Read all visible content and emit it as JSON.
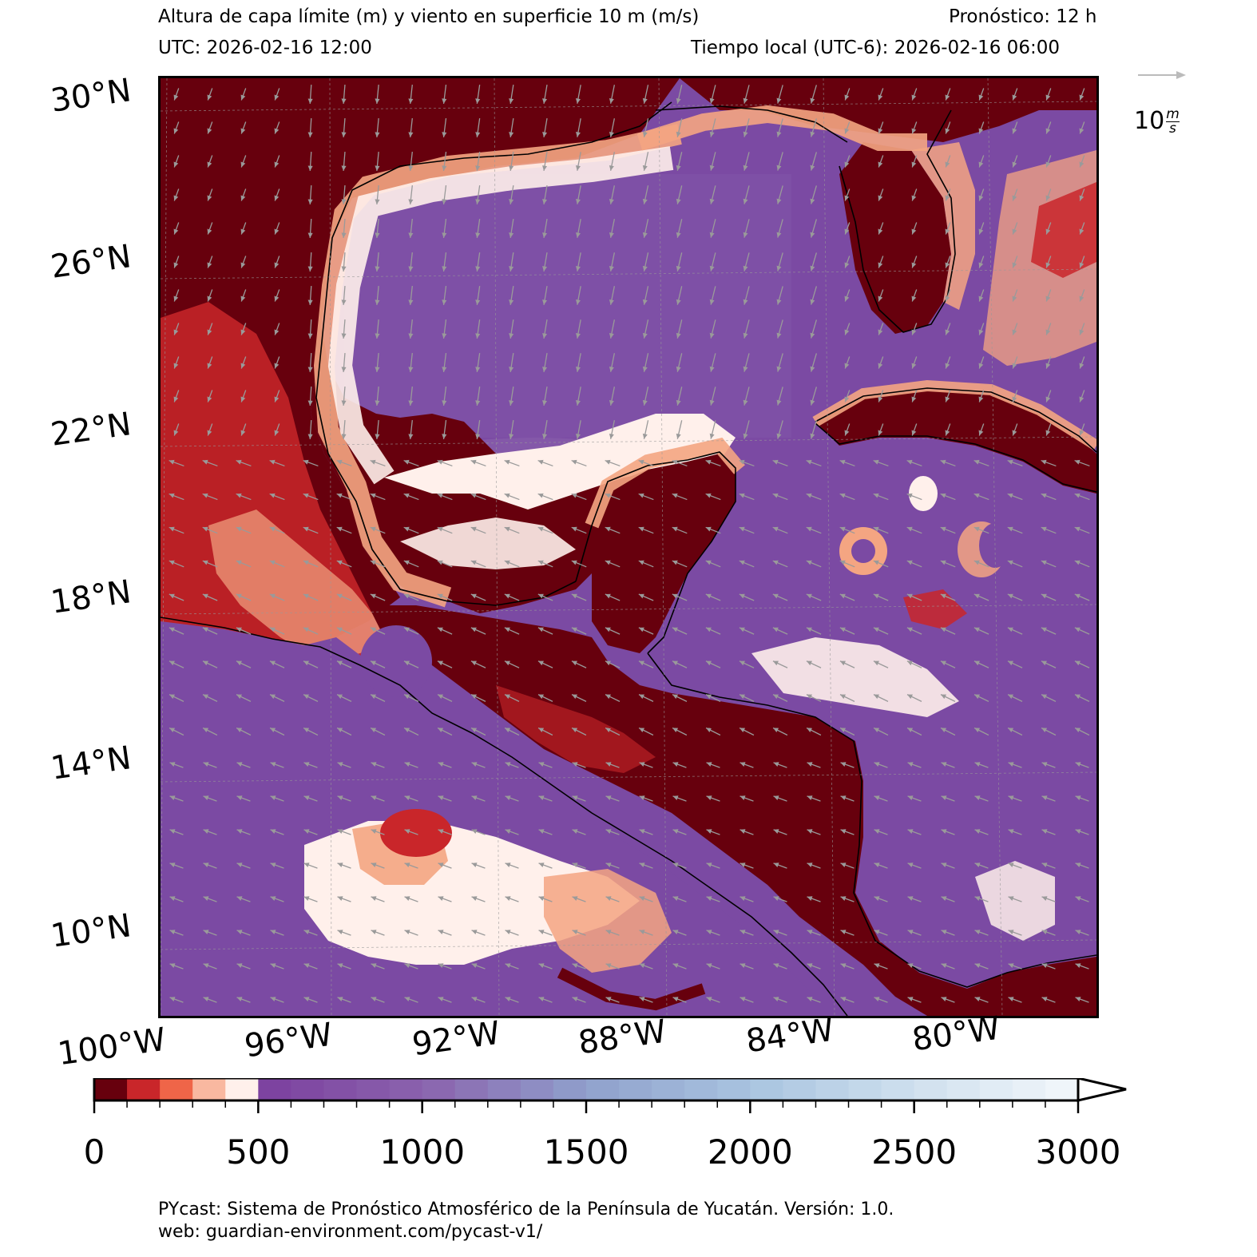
{
  "header": {
    "title": "Altura de capa límite (m) y viento en superficie 10 m (m/s)",
    "forecast": "Pronóstico: 12 h",
    "utc": "UTC:  2026-02-16 12:00",
    "local_time": "Tiempo local (UTC-6): 2026-02-16 06:00"
  },
  "map": {
    "lon_range": [
      -100,
      -77
    ],
    "lat_range": [
      7.8,
      30.2
    ],
    "lat_labels": [
      "30°N",
      "26°N",
      "22°N",
      "18°N",
      "14°N",
      "10°N"
    ],
    "lon_labels": [
      "100°W",
      "96°W",
      "92°W",
      "88°W",
      "84°W",
      "80°W"
    ],
    "colors": {
      "ocean": "#7b4aa3",
      "land_low": "#67000d",
      "land_mid": "#c9262a",
      "coast_band": "#f4a582",
      "pale": "#fff0eb"
    }
  },
  "wind_reference": {
    "value_prefix": "10",
    "unit_num": "m",
    "unit_den": "s"
  },
  "colorbar": {
    "min": 0,
    "max": 3000,
    "step": 100,
    "tick_labels": [
      "0",
      "500",
      "1000",
      "1500",
      "2000",
      "2500",
      "3000"
    ],
    "tick_values": [
      0,
      500,
      1000,
      1500,
      2000,
      2500,
      3000
    ]
  },
  "footer": {
    "line1": "PYcast: Sistema de Pronóstico Atmosférico de la Península de Yucatán. Versión: 1.0.",
    "line2": "web: guardian-environment.com/pycast-v1/"
  }
}
